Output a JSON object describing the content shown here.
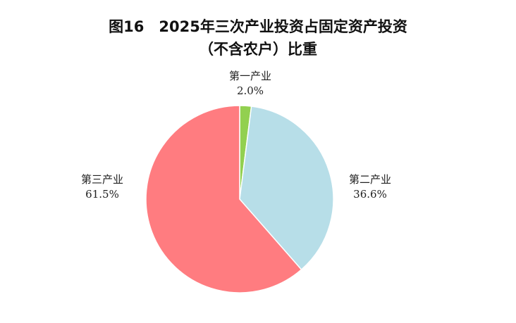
{
  "chart_data": {
    "type": "pie",
    "title": "图16　2025年三次产业投资占固定资产投资",
    "subtitle": "（不含农户）比重",
    "slices": [
      {
        "label": "第一产业",
        "value": 2.0,
        "value_label": "2.0%",
        "color": "#92d050"
      },
      {
        "label": "第二产业",
        "value": 36.6,
        "value_label": "36.6%",
        "color": "#b7dee8"
      },
      {
        "label": "第三产业",
        "value": 61.5,
        "value_label": "61.5%",
        "color": "#ff7c80"
      }
    ],
    "start_angle": "top",
    "direction": "clockwise"
  }
}
